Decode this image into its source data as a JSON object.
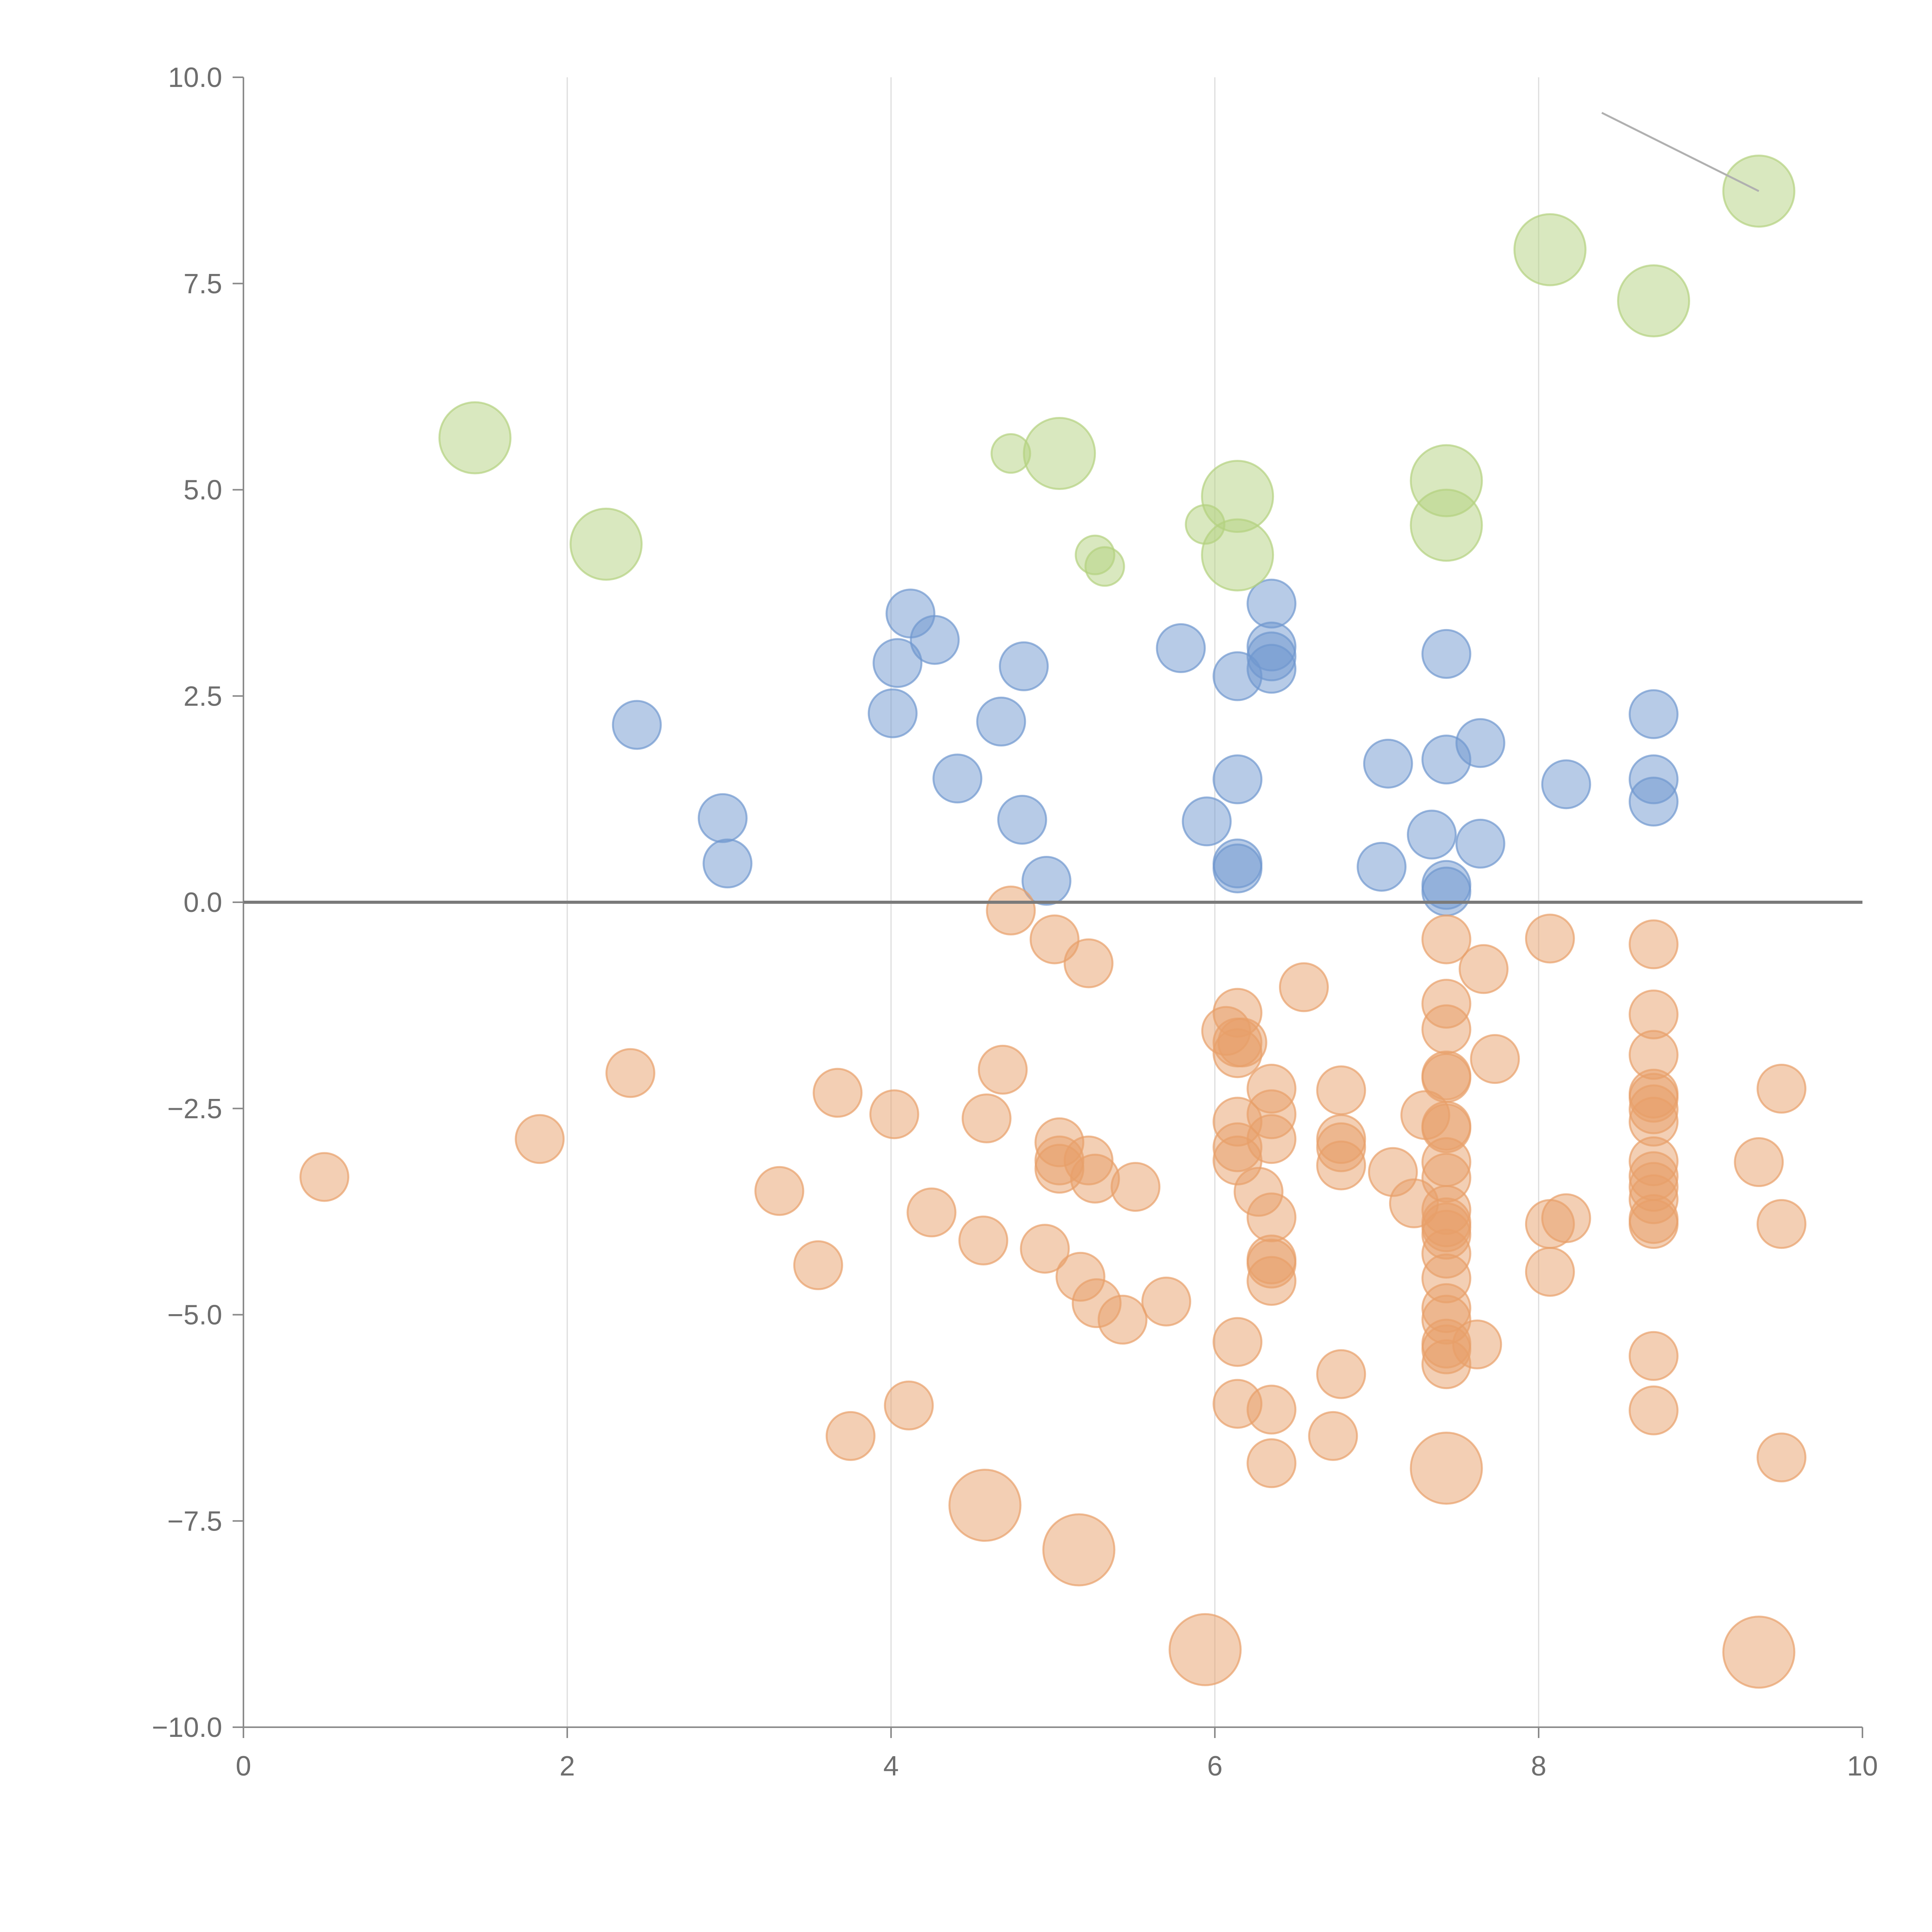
{
  "chart_data": {
    "type": "scatter",
    "title": "",
    "xlabel": "",
    "ylabel": "",
    "xlim": [
      0,
      10
    ],
    "ylim": [
      -10,
      10
    ],
    "x_ticks": [
      0,
      2,
      4,
      6,
      8,
      10
    ],
    "x_tick_labels": [
      "0",
      "2",
      "4",
      "6",
      "8",
      "10"
    ],
    "y_ticks": [
      10,
      7.5,
      5,
      2.5,
      0,
      -2.5,
      -5,
      -7.5,
      -10
    ],
    "y_tick_labels": [
      "10.0",
      "7.5",
      "5.0",
      "2.5",
      "0.0",
      "−2.5",
      "−5.0",
      "−7.5",
      "−10.0"
    ],
    "grid": "vertical gridlines at x ticks",
    "reference_line": {
      "y": 0
    },
    "legend": "none",
    "series": [
      {
        "color": "#6f97cf",
        "points": [
          [
            2.43,
            2.15
          ],
          [
            2.96,
            1.02
          ],
          [
            2.99,
            0.47
          ],
          [
            4.01,
            2.29
          ],
          [
            4.04,
            2.9
          ],
          [
            4.12,
            3.5
          ],
          [
            4.27,
            3.18
          ],
          [
            4.41,
            1.5
          ],
          [
            4.68,
            2.19
          ],
          [
            4.81,
            1.0
          ],
          [
            4.82,
            2.86
          ],
          [
            4.96,
            0.26
          ],
          [
            5.79,
            3.08
          ],
          [
            5.95,
            0.98
          ],
          [
            6.14,
            2.74
          ],
          [
            6.14,
            1.49
          ],
          [
            6.14,
            0.47
          ],
          [
            6.14,
            0.41
          ],
          [
            6.35,
            3.62
          ],
          [
            6.35,
            3.1
          ],
          [
            6.35,
            2.98
          ],
          [
            6.35,
            2.83
          ],
          [
            7.03,
            0.43
          ],
          [
            7.07,
            1.68
          ],
          [
            7.34,
            0.82
          ],
          [
            7.43,
            3.01
          ],
          [
            7.43,
            1.73
          ],
          [
            7.43,
            0.21
          ],
          [
            7.43,
            0.13
          ],
          [
            7.64,
            1.93
          ],
          [
            7.64,
            0.71
          ],
          [
            8.17,
            1.43
          ],
          [
            8.71,
            2.28
          ],
          [
            8.71,
            1.49
          ],
          [
            8.71,
            1.22
          ]
        ],
        "size": [
          20
        ]
      },
      {
        "color": "#e8a06a",
        "points": [
          [
            0.5,
            -3.33
          ],
          [
            1.83,
            -2.87
          ],
          [
            2.39,
            -2.07
          ],
          [
            3.31,
            -3.5
          ],
          [
            3.55,
            -4.4
          ],
          [
            3.67,
            -2.31
          ],
          [
            3.75,
            -6.47
          ],
          [
            4.02,
            -2.57
          ],
          [
            4.11,
            -6.1
          ],
          [
            4.25,
            -3.76
          ],
          [
            4.57,
            -4.1
          ],
          [
            4.59,
            -2.62
          ],
          [
            4.69,
            -2.03
          ],
          [
            4.74,
            -0.1
          ],
          [
            4.95,
            -4.2
          ],
          [
            5.01,
            -0.45
          ],
          [
            5.04,
            -2.91
          ],
          [
            5.04,
            -3.13
          ],
          [
            5.04,
            -3.23
          ],
          [
            5.17,
            -4.54
          ],
          [
            5.22,
            -0.74
          ],
          [
            5.22,
            -3.13
          ],
          [
            5.26,
            -3.35
          ],
          [
            5.27,
            -4.86
          ],
          [
            5.43,
            -5.06
          ],
          [
            5.51,
            -3.45
          ],
          [
            5.7,
            -4.84
          ],
          [
            6.07,
            -1.56
          ],
          [
            6.14,
            -1.34
          ],
          [
            6.14,
            -1.7
          ],
          [
            6.14,
            -1.83
          ],
          [
            6.14,
            -2.66
          ],
          [
            6.14,
            -2.97
          ],
          [
            6.14,
            -3.13
          ],
          [
            6.14,
            -5.33
          ],
          [
            6.14,
            -6.08
          ],
          [
            6.17,
            -1.7
          ],
          [
            6.27,
            -3.51
          ],
          [
            6.35,
            -2.26
          ],
          [
            6.35,
            -2.57
          ],
          [
            6.35,
            -2.87
          ],
          [
            6.35,
            -3.82
          ],
          [
            6.35,
            -4.33
          ],
          [
            6.35,
            -4.38
          ],
          [
            6.35,
            -4.59
          ],
          [
            6.35,
            -6.15
          ],
          [
            6.35,
            -6.8
          ],
          [
            6.55,
            -1.03
          ],
          [
            6.73,
            -6.47
          ],
          [
            6.78,
            -2.28
          ],
          [
            6.78,
            -2.87
          ],
          [
            6.78,
            -2.97
          ],
          [
            6.78,
            -3.19
          ],
          [
            6.78,
            -5.72
          ],
          [
            7.1,
            -3.27
          ],
          [
            7.23,
            -3.65
          ],
          [
            7.3,
            -2.58
          ],
          [
            7.43,
            -0.45
          ],
          [
            7.43,
            -1.23
          ],
          [
            7.43,
            -1.54
          ],
          [
            7.43,
            -2.1
          ],
          [
            7.43,
            -2.13
          ],
          [
            7.43,
            -2.71
          ],
          [
            7.43,
            -2.74
          ],
          [
            7.43,
            -3.15
          ],
          [
            7.43,
            -3.34
          ],
          [
            7.43,
            -3.73
          ],
          [
            7.43,
            -3.88
          ],
          [
            7.43,
            -3.94
          ],
          [
            7.43,
            -4.03
          ],
          [
            7.43,
            -4.26
          ],
          [
            7.43,
            -4.56
          ],
          [
            7.43,
            -4.92
          ],
          [
            7.43,
            -5.06
          ],
          [
            7.43,
            -5.35
          ],
          [
            7.43,
            -5.42
          ],
          [
            7.43,
            -5.6
          ],
          [
            7.62,
            -5.36
          ],
          [
            7.66,
            -0.81
          ],
          [
            7.73,
            -1.9
          ],
          [
            8.07,
            -0.44
          ],
          [
            8.07,
            -3.9
          ],
          [
            8.07,
            -4.48
          ],
          [
            8.17,
            -3.83
          ],
          [
            8.71,
            -0.51
          ],
          [
            8.71,
            -1.36
          ],
          [
            8.71,
            -1.85
          ],
          [
            8.71,
            -2.32
          ],
          [
            8.71,
            -2.37
          ],
          [
            8.71,
            -2.51
          ],
          [
            8.71,
            -2.66
          ],
          [
            8.71,
            -3.14
          ],
          [
            8.71,
            -3.32
          ],
          [
            8.71,
            -3.45
          ],
          [
            8.71,
            -3.6
          ],
          [
            8.71,
            -3.84
          ],
          [
            8.71,
            -3.9
          ],
          [
            8.71,
            -5.5
          ],
          [
            8.71,
            -6.16
          ],
          [
            9.36,
            -3.15
          ],
          [
            9.5,
            -2.26
          ],
          [
            9.5,
            -3.9
          ],
          [
            9.5,
            -6.73
          ]
        ],
        "large_points": [
          [
            4.58,
            -7.31
          ],
          [
            5.16,
            -7.85
          ],
          [
            5.94,
            -9.06
          ],
          [
            7.43,
            -6.86
          ],
          [
            9.36,
            -9.09
          ]
        ]
      },
      {
        "color": "#b4d27f",
        "points": [
          [
            4.74,
            5.44
          ],
          [
            5.94,
            4.58
          ],
          [
            5.26,
            4.21
          ],
          [
            5.32,
            4.07
          ]
        ],
        "large_points": [
          [
            1.43,
            5.63
          ],
          [
            2.24,
            4.34
          ],
          [
            5.04,
            5.44
          ],
          [
            6.14,
            4.92
          ],
          [
            6.14,
            4.21
          ],
          [
            7.43,
            5.11
          ],
          [
            7.43,
            4.57
          ],
          [
            8.07,
            7.91
          ],
          [
            8.71,
            7.29
          ],
          [
            9.36,
            8.62
          ]
        ]
      }
    ],
    "annotation_lines": [
      {
        "from": [
          8.39,
          9.57
        ],
        "to": [
          9.36,
          8.62
        ]
      }
    ]
  }
}
